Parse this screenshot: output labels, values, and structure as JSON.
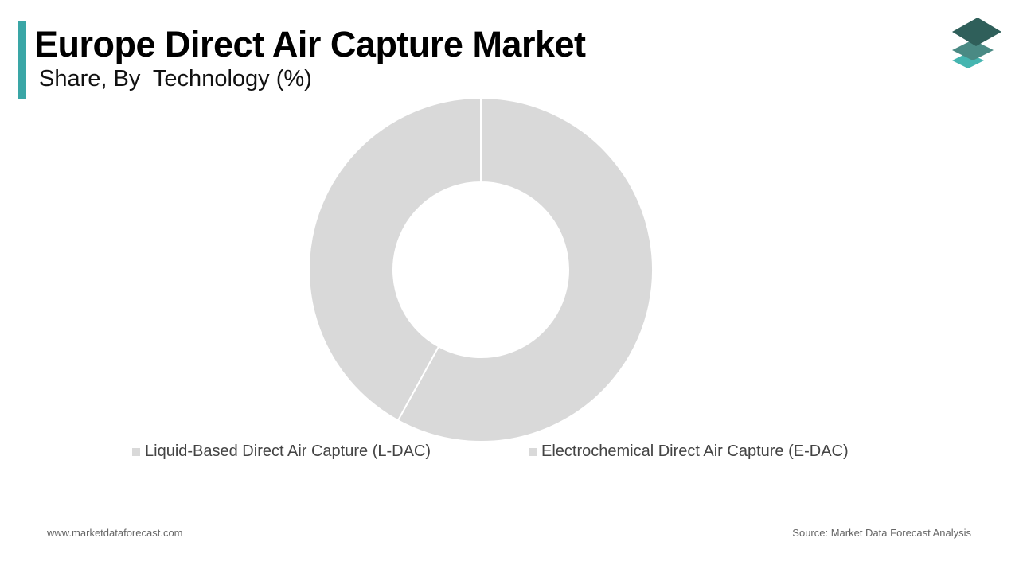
{
  "header": {
    "title": "Europe Direct Air Capture Market",
    "subtitle": "Share, By  Technology (%)"
  },
  "colors": {
    "accent": "#3aa6a6",
    "slice": "#d9d9d9",
    "logo_top": "#2f5f5a",
    "logo_mid": "#4a8a84",
    "logo_bottom": "#45b5b0"
  },
  "icons": {
    "logo": "stacked-layers-logo"
  },
  "chart_data": {
    "type": "pie",
    "donut": true,
    "categories": [
      "Liquid-Based Direct Air Capture (L-DAC)",
      "Electrochemical Direct Air Capture (E-DAC)"
    ],
    "values": [
      58,
      42
    ],
    "legend_position": "bottom"
  },
  "footer": {
    "website": "www.marketdataforecast.com",
    "source": "Source: Market Data Forecast Analysis"
  }
}
